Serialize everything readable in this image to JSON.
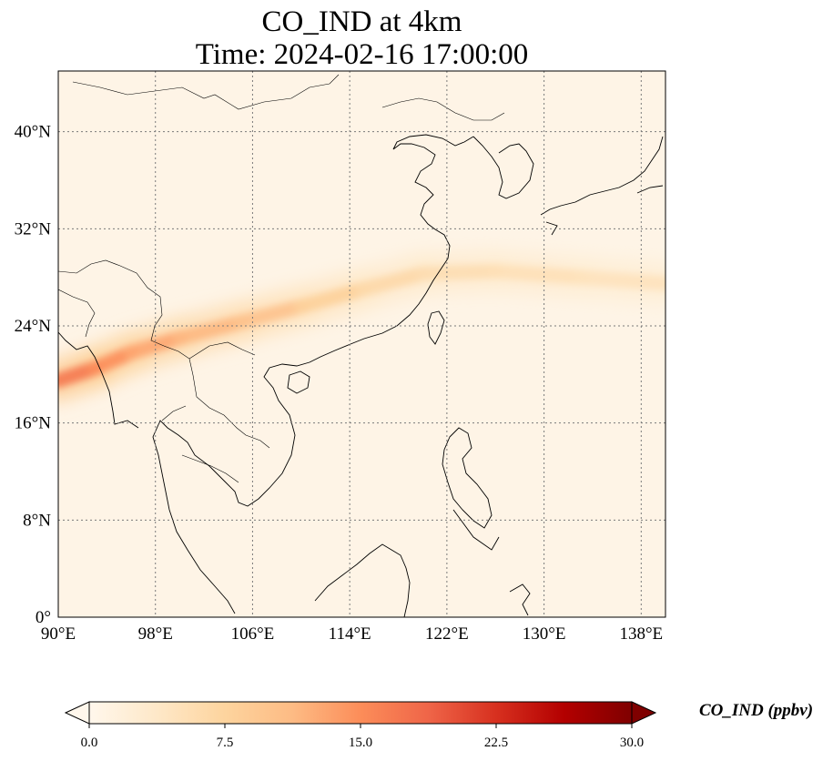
{
  "title_line1": "CO_IND at 4km",
  "title_line2": "Time: 2024-02-16 17:00:00",
  "map": {
    "lon_range": [
      90,
      140
    ],
    "lat_range": [
      0,
      45
    ],
    "lon_ticks": [
      90,
      98,
      106,
      114,
      122,
      130,
      138
    ],
    "lat_ticks": [
      0,
      8,
      16,
      24,
      32,
      40
    ],
    "lon_tick_labels": [
      "90°E",
      "98°E",
      "106°E",
      "114°E",
      "122°E",
      "130°E",
      "138°E"
    ],
    "lat_tick_labels": [
      "0°",
      "8°N",
      "16°N",
      "24°N",
      "32°N",
      "40°N"
    ],
    "gridlines": true,
    "colormap": "OrRd",
    "plume_band": [
      {
        "lon": 90,
        "lat": 19.5,
        "value": 18
      },
      {
        "lon": 93,
        "lat": 20.5,
        "value": 16
      },
      {
        "lon": 96,
        "lat": 21.8,
        "value": 14
      },
      {
        "lon": 100,
        "lat": 23.0,
        "value": 12
      },
      {
        "lon": 105,
        "lat": 24.3,
        "value": 11
      },
      {
        "lon": 110,
        "lat": 25.6,
        "value": 9
      },
      {
        "lon": 115,
        "lat": 27.0,
        "value": 7
      },
      {
        "lon": 120,
        "lat": 28.3,
        "value": 6
      },
      {
        "lon": 126,
        "lat": 28.5,
        "value": 5.5
      },
      {
        "lon": 133,
        "lat": 28.0,
        "value": 5
      },
      {
        "lon": 140,
        "lat": 27.5,
        "value": 4.5
      }
    ]
  },
  "colorbar": {
    "label": "CO_IND (ppbv)",
    "min": 0,
    "max": 30,
    "extend": "both",
    "ticks": [
      0,
      7.5,
      15,
      22.5,
      30
    ],
    "tick_labels": [
      "0.0",
      "7.5",
      "15.0",
      "22.5",
      "30.0"
    ],
    "colors": [
      "#fff7ec",
      "#fee8c8",
      "#fdd49e",
      "#fdbb84",
      "#fc8d59",
      "#ef6548",
      "#d7301f",
      "#b30000",
      "#7f0000"
    ]
  }
}
